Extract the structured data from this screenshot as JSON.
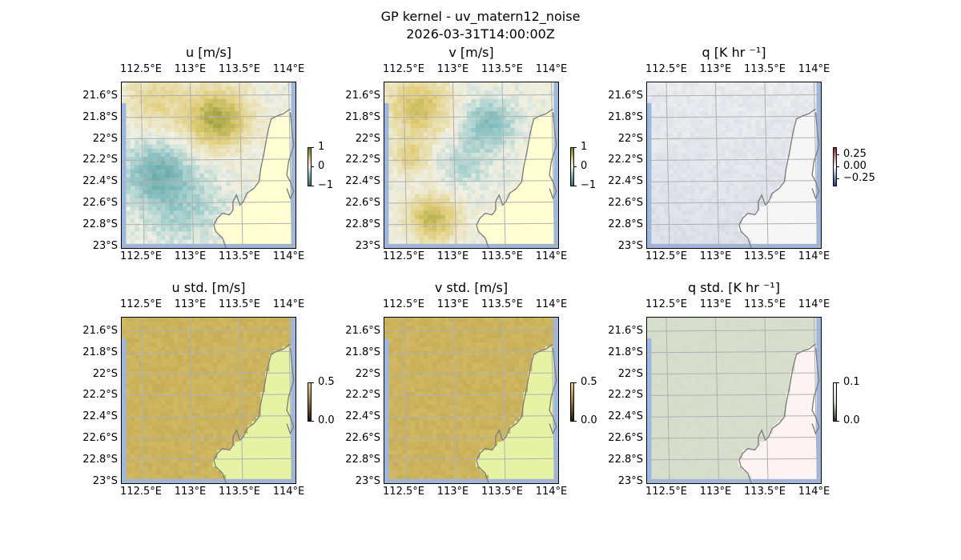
{
  "figure": {
    "title": "GP kernel - uv_matern12_noise",
    "timestamp": "2026-03-31T14:00:00Z"
  },
  "colors": {
    "land": "#fffdd2",
    "land_std": "#e6f3a5",
    "ocean_edge": "#9db7e0",
    "grid": "#b0b0b0",
    "coast": "#808080"
  },
  "chart_data": [
    {
      "type": "heatmap",
      "title": "u [m/s]",
      "field": "u",
      "colormap": "diverging-teal-yellow",
      "colorbar": {
        "ticks": [
          "1",
          "0",
          "−1"
        ],
        "range": [
          -1,
          1
        ]
      },
      "lon_ticks": [
        "112.5°E",
        "113°E",
        "113.5°E",
        "114°E"
      ],
      "lat_ticks": [
        "21.6°S",
        "21.8°S",
        "22°S",
        "22.2°S",
        "22.4°S",
        "22.6°S",
        "22.8°S",
        "23°S"
      ],
      "grid": true
    },
    {
      "type": "heatmap",
      "title": "v [m/s]",
      "field": "v",
      "colormap": "diverging-teal-yellow",
      "colorbar": {
        "ticks": [
          "1",
          "0",
          "−1"
        ],
        "range": [
          -1,
          1
        ]
      },
      "lon_ticks": [
        "112.5°E",
        "113°E",
        "113.5°E",
        "114°E"
      ],
      "lat_ticks": [
        "21.6°S",
        "21.8°S",
        "22°S",
        "22.2°S",
        "22.4°S",
        "22.6°S",
        "22.8°S",
        "23°S"
      ],
      "grid": true
    },
    {
      "type": "heatmap",
      "title": "q [K hr ⁻¹]",
      "field": "q",
      "colormap": "diverging-blue-red",
      "colorbar": {
        "ticks": [
          "0.25",
          "0.00",
          "−0.25"
        ],
        "range": [
          -0.35,
          0.35
        ]
      },
      "lon_ticks": [
        "112.5°E",
        "113°E",
        "113.5°E",
        "114°E"
      ],
      "lat_ticks": [
        "21.6°S",
        "21.8°S",
        "22°S",
        "22.2°S",
        "22.4°S",
        "22.6°S",
        "22.8°S",
        "23°S"
      ],
      "grid": true
    },
    {
      "type": "heatmap",
      "title": "u std. [m/s]",
      "field": "u_std",
      "colormap": "sequential-dark-gold",
      "colorbar": {
        "ticks": [
          "0.5",
          "0.0"
        ],
        "range": [
          0,
          0.5
        ]
      },
      "lon_ticks": [
        "112.5°E",
        "113°E",
        "113.5°E",
        "114°E"
      ],
      "lat_ticks": [
        "21.6°S",
        "21.8°S",
        "22°S",
        "22.2°S",
        "22.4°S",
        "22.6°S",
        "22.8°S",
        "23°S"
      ],
      "grid": true
    },
    {
      "type": "heatmap",
      "title": "v std. [m/s]",
      "field": "v_std",
      "colormap": "sequential-dark-gold",
      "colorbar": {
        "ticks": [
          "0.5",
          "0.0"
        ],
        "range": [
          0,
          0.5
        ]
      },
      "lon_ticks": [
        "112.5°E",
        "113°E",
        "113.5°E",
        "114°E"
      ],
      "lat_ticks": [
        "21.6°S",
        "21.8°S",
        "22°S",
        "22.2°S",
        "22.4°S",
        "22.6°S",
        "22.8°S",
        "23°S"
      ],
      "grid": true
    },
    {
      "type": "heatmap",
      "title": "q std. [K hr ⁻¹]",
      "field": "q_std",
      "colormap": "sequential-green-pink",
      "colorbar": {
        "ticks": [
          "0.1",
          "0.0"
        ],
        "range": [
          0,
          0.1
        ]
      },
      "lon_ticks": [
        "112.5°E",
        "113°E",
        "113.5°E",
        "114°E"
      ],
      "lat_ticks": [
        "21.6°S",
        "21.8°S",
        "22°S",
        "22.2°S",
        "22.4°S",
        "22.6°S",
        "22.8°S",
        "23°S"
      ],
      "grid": true
    }
  ]
}
